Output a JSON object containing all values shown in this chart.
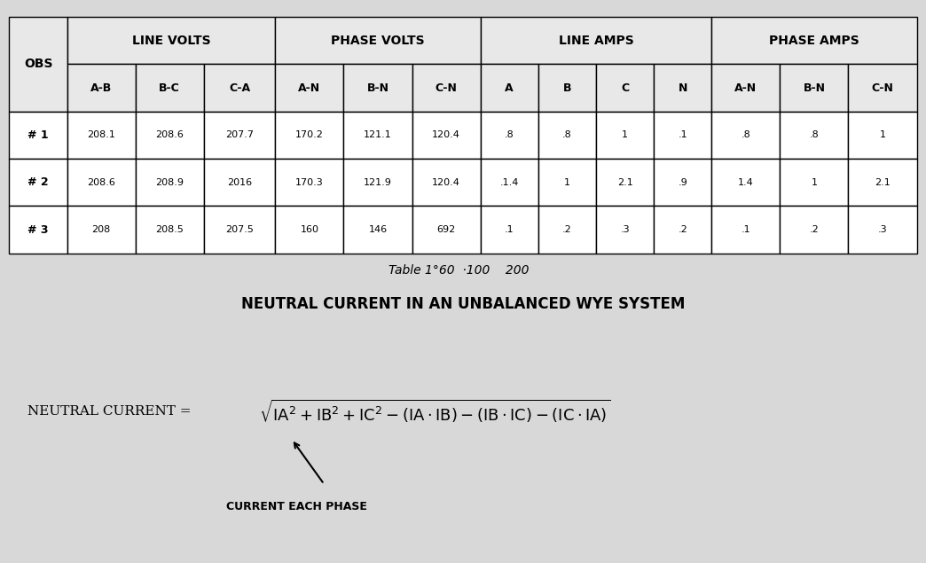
{
  "bg_color": "#d8d8d8",
  "title_section": "NEUTRAL CURRENT IN AN UNBALANCED WYE SYSTEM",
  "table_caption": "Table 1°60  ·100    200",
  "header_row1": [
    "OBS",
    "LINE VOLTS",
    "",
    "",
    "PHASE VOLTS",
    "",
    "",
    "LINE AMPS",
    "",
    "",
    "",
    "PHASE AMPS",
    "",
    ""
  ],
  "header_row2": [
    "",
    "A-B",
    "B-C",
    "C-A",
    "A-N",
    "B-N",
    "C-N",
    "A",
    "B",
    "C",
    "N",
    "A-N",
    "B-N",
    "C-N"
  ],
  "data_rows": [
    [
      "# 1",
      "208.1",
      "208.6",
      "207.7",
      "170.2",
      "121.1",
      "120.4",
      ".8",
      ".8",
      "1",
      ".1",
      ".8",
      ".8",
      "1"
    ],
    [
      "# 2",
      "208.6",
      "208.9",
      "2016",
      "170.3",
      "121.9",
      "120.4",
      ".1.4",
      "1",
      "2.1",
      ".9",
      "1.4",
      "1",
      "2.1"
    ],
    [
      "# 3",
      "208",
      "208.5",
      "207.5",
      "160",
      "146",
      "692",
      ".1",
      ".2",
      ".3",
      ".2",
      ".1",
      ".2",
      ".3"
    ]
  ],
  "formula_label": "NEUTRAL CURRENT =",
  "formula_math": "$\\sqrt{\\mathrm{IA}^2 + \\mathrm{IB}^2 + \\mathrm{IC}^2 - (\\mathrm{IA} \\cdot \\mathrm{IB}) - (\\mathrm{IB} \\cdot \\mathrm{IC}) - (\\mathrm{IC} \\cdot \\mathrm{IA})}$",
  "annotation_text": "CURRENT EACH PHASE"
}
